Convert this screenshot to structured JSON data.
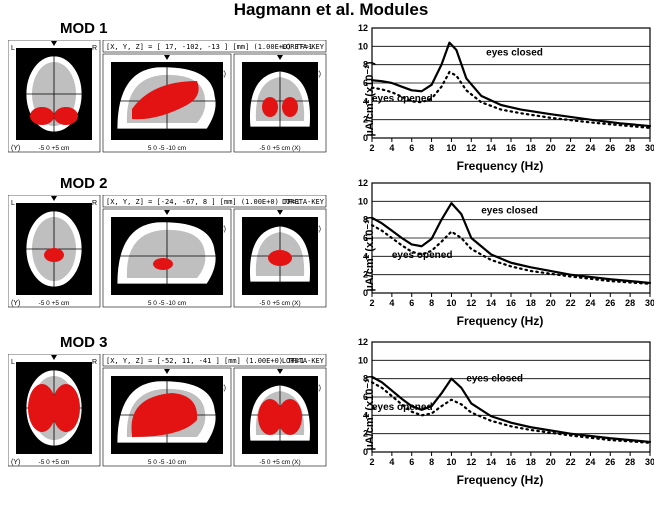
{
  "main_title": "Hagmann et al. Modules",
  "rows": [
    {
      "mod_label": "MOD 1",
      "brain": {
        "coord_text": "[X, Y, Z] = [ 17, -102, -13 ] [mm]  (1.00E+0)     TF=1",
        "key_text": "LORETA-KEY",
        "brain_colors": {
          "bg": "#000000",
          "slice_bg": "#ffffff",
          "gray": "#bfbfbf",
          "darkgray": "#5a5a5a",
          "activation": "#e31313"
        },
        "axis_labels": {
          "x_left": "-5",
          "x_right": "+5 cm",
          "view1_y": "(Y)",
          "view2_x": "(X)",
          "view2_z": "(Z)",
          "view3_x": "(X)",
          "view3_z": "(Z)",
          "ax_center": "0",
          "ax_mid_l": "-5",
          "ax_mid_r": "5",
          "ax_far_l": "-10 cm"
        }
      },
      "chart": {
        "type": "line",
        "background_color": "#ffffff",
        "grid_color": "#000000",
        "xlim": [
          2,
          30
        ],
        "ylim": [
          0,
          12
        ],
        "xticks": [
          2,
          4,
          6,
          8,
          10,
          12,
          14,
          16,
          18,
          20,
          22,
          24,
          26,
          28,
          30
        ],
        "yticks": [
          0,
          2,
          4,
          6,
          8,
          10,
          12
        ],
        "xlabel": "Frequency (Hz)",
        "ylabel": "µA/cm² (x10⁻²)",
        "series": [
          {
            "name": "eyes closed",
            "color": "#000000",
            "dash": "solid",
            "width": 2.2,
            "label_pos_on_chart": {
              "x": 13.5,
              "y": 9.0
            },
            "points": [
              {
                "x": 2,
                "y": 6.3
              },
              {
                "x": 3,
                "y": 6.2
              },
              {
                "x": 4,
                "y": 6.0
              },
              {
                "x": 5,
                "y": 5.6
              },
              {
                "x": 6,
                "y": 5.2
              },
              {
                "x": 7,
                "y": 5.1
              },
              {
                "x": 8,
                "y": 5.8
              },
              {
                "x": 9,
                "y": 8.0
              },
              {
                "x": 9.8,
                "y": 10.4
              },
              {
                "x": 10.5,
                "y": 9.6
              },
              {
                "x": 11.5,
                "y": 6.5
              },
              {
                "x": 13,
                "y": 4.6
              },
              {
                "x": 15,
                "y": 3.6
              },
              {
                "x": 17,
                "y": 3.1
              },
              {
                "x": 20,
                "y": 2.6
              },
              {
                "x": 24,
                "y": 2.0
              },
              {
                "x": 27,
                "y": 1.6
              },
              {
                "x": 30,
                "y": 1.3
              }
            ]
          },
          {
            "name": "eyes opened",
            "color": "#000000",
            "dash": "dotted",
            "width": 2.2,
            "label_pos_on_chart": {
              "x": 2.0,
              "y": 4.0
            },
            "points": [
              {
                "x": 2,
                "y": 5.5
              },
              {
                "x": 3,
                "y": 5.3
              },
              {
                "x": 4,
                "y": 5.0
              },
              {
                "x": 5,
                "y": 4.5
              },
              {
                "x": 6,
                "y": 4.0
              },
              {
                "x": 7,
                "y": 3.9
              },
              {
                "x": 8,
                "y": 4.3
              },
              {
                "x": 9,
                "y": 5.6
              },
              {
                "x": 9.8,
                "y": 7.2
              },
              {
                "x": 10.5,
                "y": 6.8
              },
              {
                "x": 11.5,
                "y": 5.2
              },
              {
                "x": 13,
                "y": 3.9
              },
              {
                "x": 15,
                "y": 3.1
              },
              {
                "x": 17,
                "y": 2.7
              },
              {
                "x": 20,
                "y": 2.2
              },
              {
                "x": 24,
                "y": 1.7
              },
              {
                "x": 27,
                "y": 1.4
              },
              {
                "x": 30,
                "y": 1.1
              }
            ]
          }
        ]
      }
    },
    {
      "mod_label": "MOD 2",
      "brain": {
        "coord_text": "[X, Y, Z] = [-24, -67,  8 ] [mm]  (1.00E+0)     TF=1",
        "key_text": "LORETA-KEY",
        "brain_colors": {
          "bg": "#000000",
          "slice_bg": "#ffffff",
          "gray": "#bfbfbf",
          "darkgray": "#5a5a5a",
          "activation": "#e31313"
        },
        "axis_labels": {
          "x_left": "-5",
          "x_right": "+5 cm",
          "view1_y": "(Y)",
          "view2_x": "(X)",
          "view2_z": "(Z)",
          "view3_x": "(X)",
          "view3_z": "(Z)",
          "ax_center": "0",
          "ax_mid_l": "-5",
          "ax_mid_r": "5",
          "ax_far_l": "-10 cm"
        }
      },
      "chart": {
        "type": "line",
        "background_color": "#ffffff",
        "grid_color": "#000000",
        "xlim": [
          2,
          30
        ],
        "ylim": [
          0,
          12
        ],
        "xticks": [
          2,
          4,
          6,
          8,
          10,
          12,
          14,
          16,
          18,
          20,
          22,
          24,
          26,
          28,
          30
        ],
        "yticks": [
          0,
          2,
          4,
          6,
          8,
          10,
          12
        ],
        "xlabel": "Frequency (Hz)",
        "ylabel": "µA/cm² (x10⁻³)",
        "series": [
          {
            "name": "eyes closed",
            "color": "#000000",
            "dash": "solid",
            "width": 2.2,
            "label_pos_on_chart": {
              "x": 13.0,
              "y": 8.7
            },
            "points": [
              {
                "x": 2,
                "y": 8.2
              },
              {
                "x": 3,
                "y": 7.6
              },
              {
                "x": 4,
                "y": 6.8
              },
              {
                "x": 5,
                "y": 6.0
              },
              {
                "x": 6,
                "y": 5.3
              },
              {
                "x": 7,
                "y": 5.1
              },
              {
                "x": 8,
                "y": 5.9
              },
              {
                "x": 9,
                "y": 8.0
              },
              {
                "x": 10,
                "y": 9.8
              },
              {
                "x": 11,
                "y": 8.6
              },
              {
                "x": 12,
                "y": 6.0
              },
              {
                "x": 14,
                "y": 4.2
              },
              {
                "x": 16,
                "y": 3.3
              },
              {
                "x": 18,
                "y": 2.8
              },
              {
                "x": 22,
                "y": 2.0
              },
              {
                "x": 26,
                "y": 1.5
              },
              {
                "x": 30,
                "y": 1.1
              }
            ]
          },
          {
            "name": "eyes opened",
            "color": "#000000",
            "dash": "dotted",
            "width": 2.2,
            "label_pos_on_chart": {
              "x": 4.0,
              "y": 3.8
            },
            "points": [
              {
                "x": 2,
                "y": 7.4
              },
              {
                "x": 3,
                "y": 6.8
              },
              {
                "x": 4,
                "y": 6.0
              },
              {
                "x": 5,
                "y": 5.2
              },
              {
                "x": 6,
                "y": 4.5
              },
              {
                "x": 7,
                "y": 4.2
              },
              {
                "x": 8,
                "y": 4.6
              },
              {
                "x": 9,
                "y": 5.6
              },
              {
                "x": 10,
                "y": 6.7
              },
              {
                "x": 11,
                "y": 6.0
              },
              {
                "x": 12,
                "y": 4.8
              },
              {
                "x": 14,
                "y": 3.6
              },
              {
                "x": 16,
                "y": 2.9
              },
              {
                "x": 18,
                "y": 2.4
              },
              {
                "x": 22,
                "y": 1.8
              },
              {
                "x": 26,
                "y": 1.3
              },
              {
                "x": 30,
                "y": 1.0
              }
            ]
          }
        ]
      }
    },
    {
      "mod_label": "MOD 3",
      "brain": {
        "coord_text": "[X, Y, Z] = [-52,  11, -41 ] [mm]  (1.00E+0)     TF=1",
        "key_text": "LORETA-KEY",
        "brain_colors": {
          "bg": "#000000",
          "slice_bg": "#ffffff",
          "gray": "#bfbfbf",
          "darkgray": "#5a5a5a",
          "activation": "#e31313"
        },
        "axis_labels": {
          "x_left": "-5",
          "x_right": "+5 cm",
          "view1_y": "(Y)",
          "view2_x": "(X)",
          "view2_z": "(Z)",
          "view3_x": "(X)",
          "view3_z": "(Z)",
          "ax_center": "0",
          "ax_mid_l": "-5",
          "ax_mid_r": "5",
          "ax_far_l": "-10 cm"
        }
      },
      "chart": {
        "type": "line",
        "background_color": "#ffffff",
        "grid_color": "#000000",
        "xlim": [
          2,
          30
        ],
        "ylim": [
          0,
          12
        ],
        "xticks": [
          2,
          4,
          6,
          8,
          10,
          12,
          14,
          16,
          18,
          20,
          22,
          24,
          26,
          28,
          30
        ],
        "yticks": [
          0,
          2,
          4,
          6,
          8,
          10,
          12
        ],
        "xlabel": "Frequency (Hz)",
        "ylabel": "µA/cm² (x10⁻³)",
        "series": [
          {
            "name": "eyes closed",
            "color": "#000000",
            "dash": "solid",
            "width": 2.2,
            "label_pos_on_chart": {
              "x": 11.5,
              "y": 7.7
            },
            "points": [
              {
                "x": 2,
                "y": 8.2
              },
              {
                "x": 3,
                "y": 7.6
              },
              {
                "x": 4,
                "y": 6.7
              },
              {
                "x": 5,
                "y": 5.8
              },
              {
                "x": 6,
                "y": 5.0
              },
              {
                "x": 7,
                "y": 4.6
              },
              {
                "x": 8,
                "y": 5.0
              },
              {
                "x": 9,
                "y": 6.4
              },
              {
                "x": 10,
                "y": 8.0
              },
              {
                "x": 11,
                "y": 7.0
              },
              {
                "x": 12,
                "y": 5.3
              },
              {
                "x": 14,
                "y": 3.9
              },
              {
                "x": 16,
                "y": 3.2
              },
              {
                "x": 18,
                "y": 2.7
              },
              {
                "x": 22,
                "y": 2.0
              },
              {
                "x": 26,
                "y": 1.5
              },
              {
                "x": 30,
                "y": 1.1
              }
            ]
          },
          {
            "name": "eyes opened",
            "color": "#000000",
            "dash": "dotted",
            "width": 2.2,
            "label_pos_on_chart": {
              "x": 2.0,
              "y": 4.6
            },
            "points": [
              {
                "x": 2,
                "y": 7.6
              },
              {
                "x": 3,
                "y": 7.0
              },
              {
                "x": 4,
                "y": 6.1
              },
              {
                "x": 5,
                "y": 5.2
              },
              {
                "x": 6,
                "y": 4.4
              },
              {
                "x": 7,
                "y": 4.0
              },
              {
                "x": 8,
                "y": 4.2
              },
              {
                "x": 9,
                "y": 5.0
              },
              {
                "x": 10,
                "y": 5.7
              },
              {
                "x": 11,
                "y": 5.2
              },
              {
                "x": 12,
                "y": 4.3
              },
              {
                "x": 14,
                "y": 3.4
              },
              {
                "x": 16,
                "y": 2.8
              },
              {
                "x": 18,
                "y": 2.4
              },
              {
                "x": 22,
                "y": 1.8
              },
              {
                "x": 26,
                "y": 1.3
              },
              {
                "x": 30,
                "y": 1.0
              }
            ]
          }
        ]
      }
    }
  ]
}
